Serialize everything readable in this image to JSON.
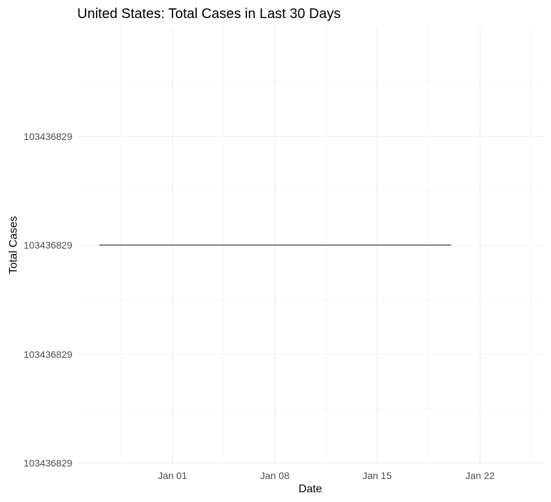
{
  "chart_data": {
    "type": "line",
    "title": "United States: Total Cases in Last 30 Days",
    "xlabel": "Date",
    "ylabel": "Total Cases",
    "x_ticks": [
      "Jan 01",
      "Jan 08",
      "Jan 15",
      "Jan 22"
    ],
    "y_ticks": [
      "103436829",
      "103436829",
      "103436829",
      "103436829"
    ],
    "series": [
      {
        "x": [
          "2022-12-27",
          "2023-01-20"
        ],
        "y": [
          103436829,
          103436829
        ]
      }
    ],
    "grid": true,
    "legend": "none"
  }
}
